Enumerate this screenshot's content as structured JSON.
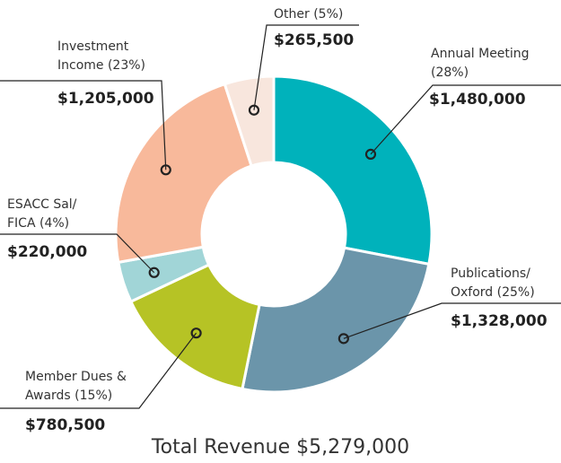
{
  "chart_data": {
    "type": "donut",
    "title": "Total Revenue $5,279,000",
    "categories": [
      "Annual Meeting (28%)",
      "Publications/ Oxford (25%)",
      "Member Dues & Awards (15%)",
      "ESACC Sal/ FICA (4%)",
      "Investment Income (23%)",
      "Other (5%)"
    ],
    "values": [
      1480000,
      1328000,
      780500,
      220000,
      1205000,
      265500
    ],
    "value_labels": [
      "$1,480,000",
      "$1,328,000",
      "$780,500",
      "$220,000",
      "$1,205,000",
      "$265,500"
    ],
    "colors": [
      "#00b2bb",
      "#6b95aa",
      "#b6c325",
      "#a1d5d7",
      "#f8b99b",
      "#f8e6dd"
    ]
  }
}
